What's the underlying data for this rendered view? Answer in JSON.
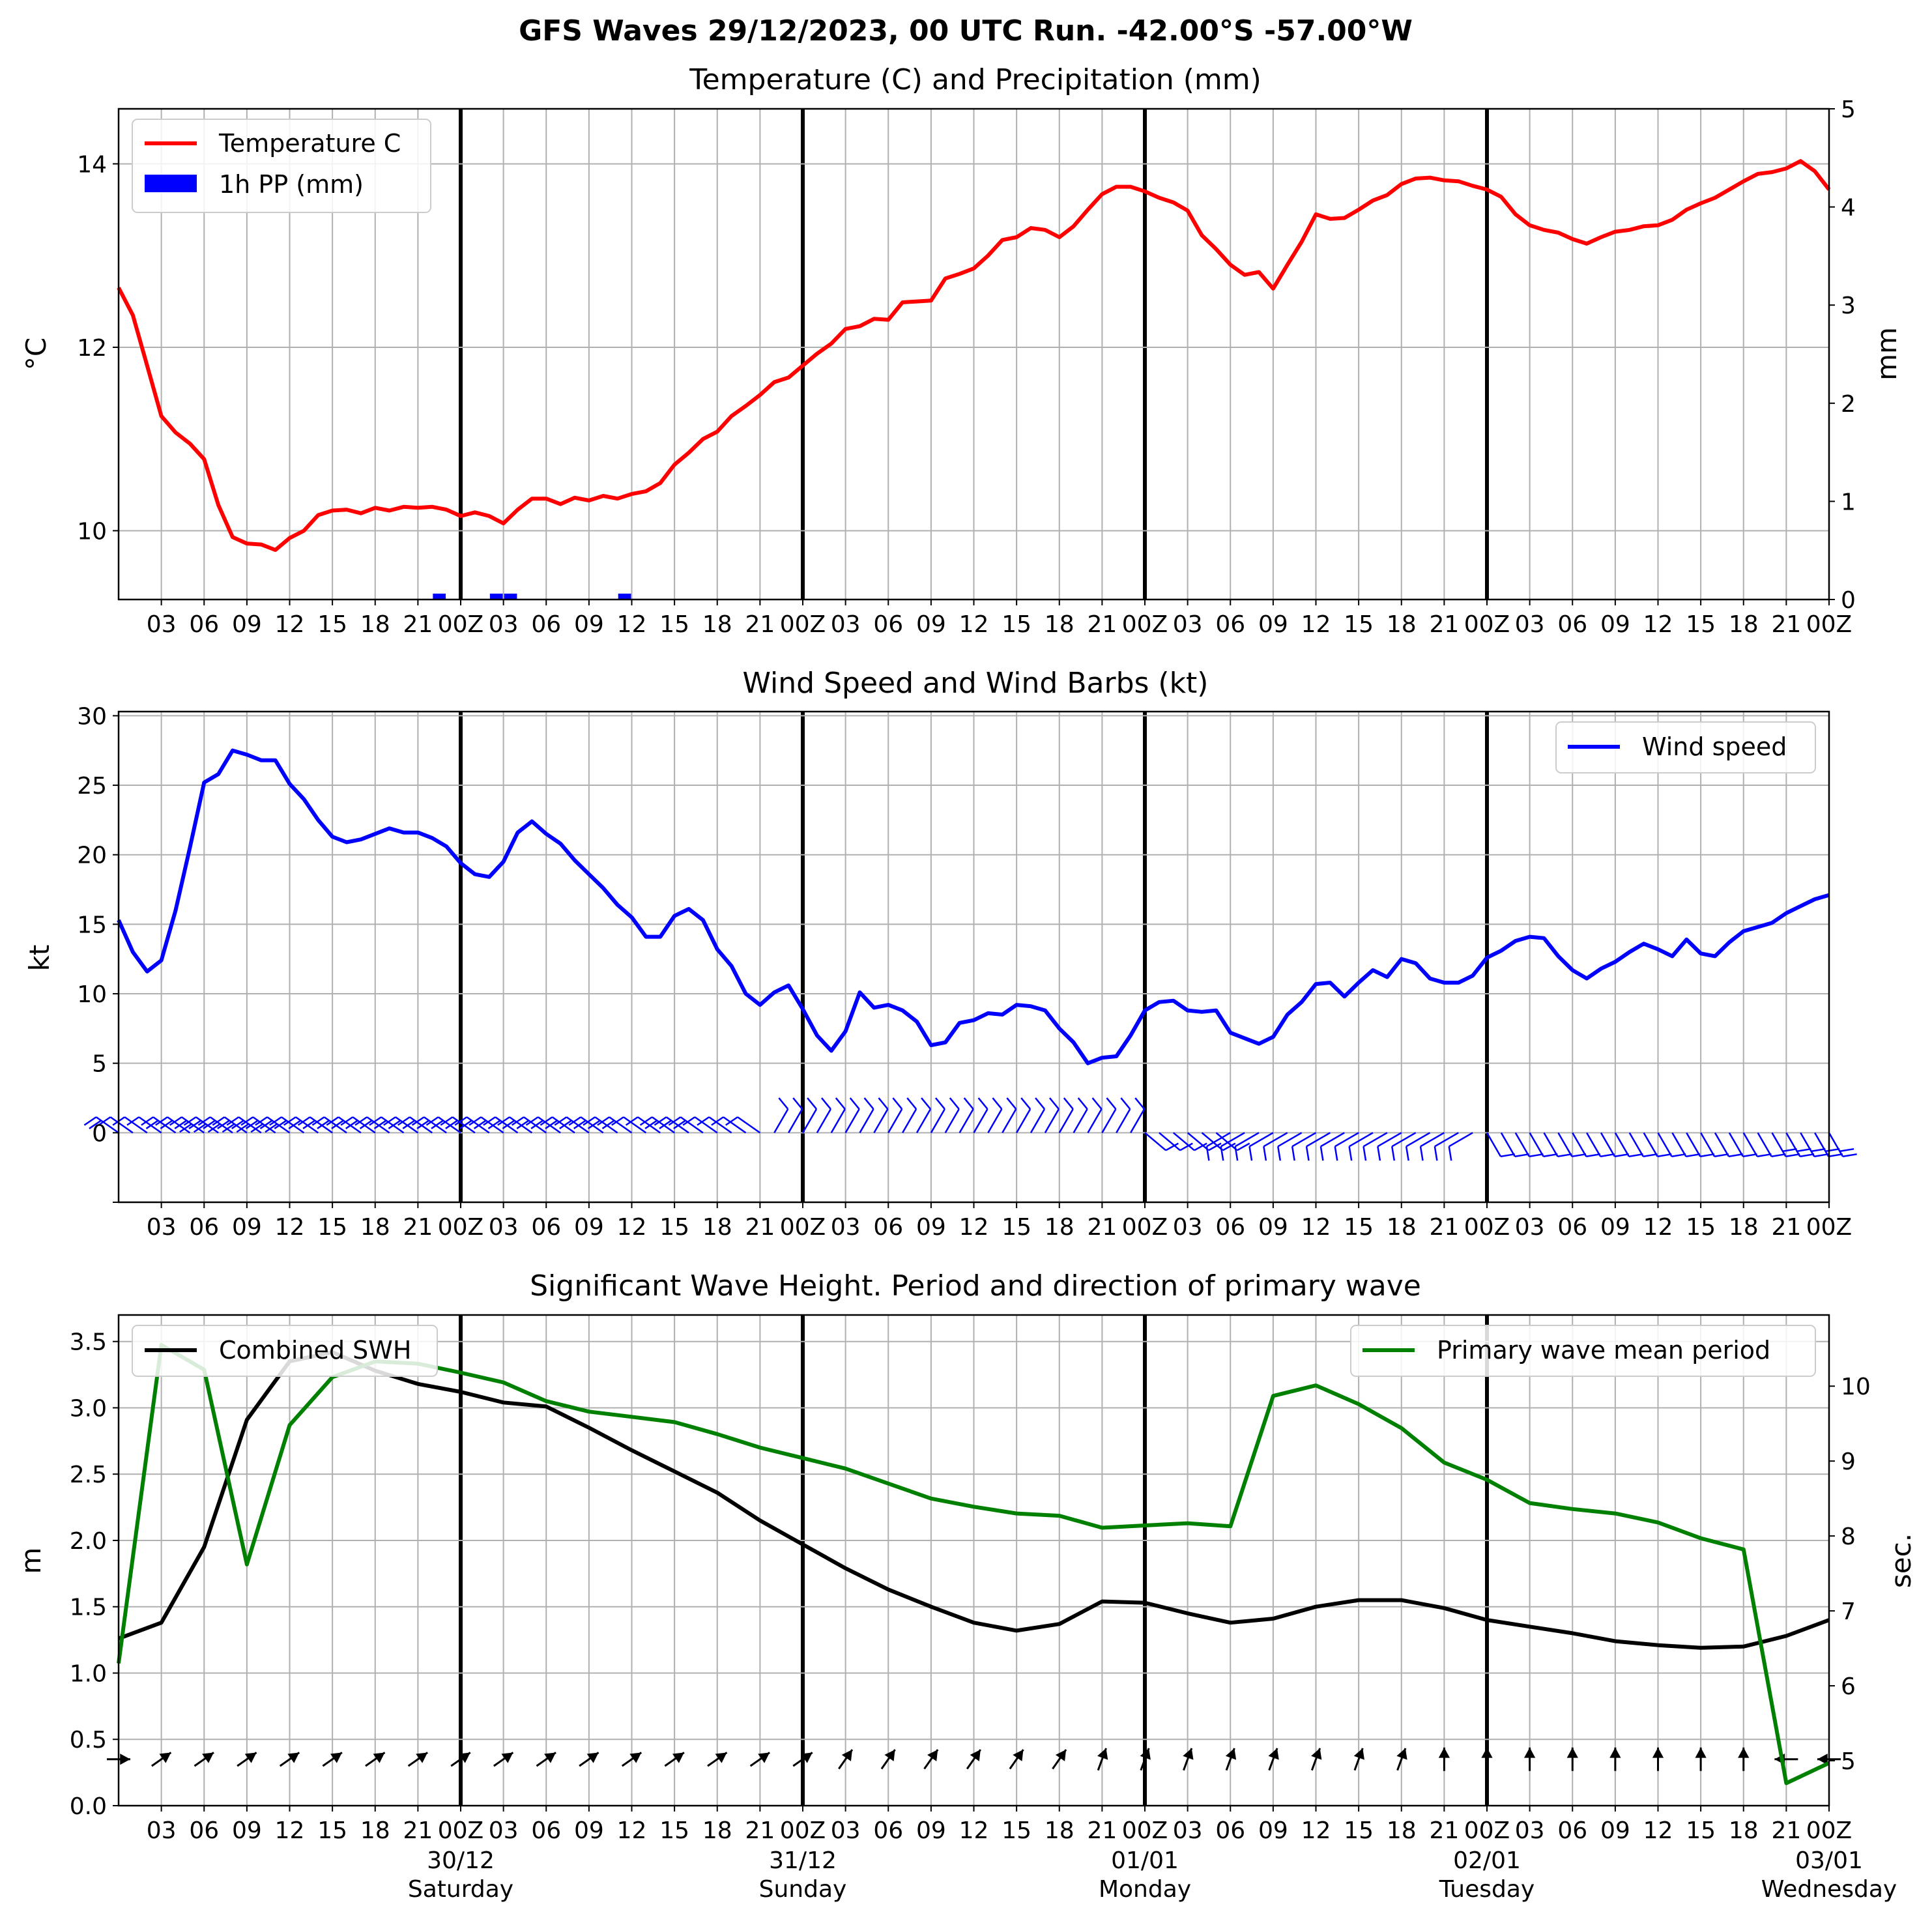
{
  "figure": {
    "suptitle": "GFS Waves 29/12/2023, 00 UTC Run. -42.00°S -57.00°W"
  },
  "time_axis": {
    "hour_labels": [
      "03",
      "06",
      "09",
      "12",
      "15",
      "18",
      "21",
      "00Z",
      "03",
      "06",
      "09",
      "12",
      "15",
      "18",
      "21",
      "00Z",
      "03",
      "06",
      "09",
      "12",
      "15",
      "18",
      "21",
      "00Z",
      "03",
      "06",
      "09",
      "12",
      "15",
      "18",
      "21",
      "00Z",
      "03",
      "06",
      "09",
      "12",
      "15",
      "18",
      "21",
      "00Z"
    ],
    "day_labels": [
      {
        "date": "30/12",
        "day": "Saturday",
        "hour": 24
      },
      {
        "date": "31/12",
        "day": "Sunday",
        "hour": 48
      },
      {
        "date": "01/01",
        "day": "Monday",
        "hour": 72
      },
      {
        "date": "02/01",
        "day": "Tuesday",
        "hour": 96
      },
      {
        "date": "03/01",
        "day": "Wednesday",
        "hour": 120
      }
    ]
  },
  "colors": {
    "temperature": "#ff0000",
    "precipitation": "#0000ff",
    "wind": "#0000ff",
    "swh": "#000000",
    "period": "#008000",
    "grid": "#b0b0b0"
  },
  "chart_data": [
    {
      "type": "line",
      "title": "Temperature (C) and Precipitation (mm)",
      "ylabel": "$^\\circ$C",
      "ylabel_right": "mm",
      "xlim": [
        0,
        120
      ],
      "ylim": [
        9.25,
        14.6
      ],
      "ylim_right": [
        0,
        5
      ],
      "yticks": [
        10,
        12,
        14
      ],
      "yticks_right": [
        0,
        1,
        2,
        3,
        4,
        5
      ],
      "legend_position": "upper left",
      "grid": true,
      "series": [
        {
          "name": "Temperature C",
          "x": [
            0,
            1,
            2,
            3,
            4,
            5,
            6,
            7,
            8,
            9,
            10,
            11,
            12,
            13,
            14,
            15,
            16,
            17,
            18,
            19,
            20,
            21,
            22,
            23,
            24,
            25,
            26,
            27,
            28,
            29,
            30,
            31,
            32,
            33,
            34,
            35,
            36,
            37,
            38,
            39,
            40,
            41,
            42,
            43,
            44,
            45,
            46,
            47,
            48,
            49,
            50,
            51,
            52,
            53,
            54,
            55,
            56,
            57,
            58,
            59,
            60,
            61,
            62,
            63,
            64,
            65,
            66,
            67,
            68,
            69,
            70,
            71,
            72,
            73,
            74,
            75,
            76,
            77,
            78,
            79,
            80,
            81,
            82,
            83,
            84,
            85,
            86,
            87,
            88,
            89,
            90,
            91,
            92,
            93,
            94,
            95,
            96,
            97,
            98,
            99,
            100,
            101,
            102,
            103,
            104,
            105,
            106,
            107,
            108,
            109,
            110,
            111,
            112,
            113,
            114,
            115,
            116,
            117,
            118,
            119,
            120
          ],
          "y": [
            12.65,
            12.35,
            11.8,
            11.25,
            11.07,
            10.95,
            10.78,
            10.28,
            9.93,
            9.86,
            9.85,
            9.79,
            9.92,
            10.0,
            10.17,
            10.22,
            10.23,
            10.19,
            10.25,
            10.22,
            10.26,
            10.25,
            10.26,
            10.23,
            10.16,
            10.2,
            10.16,
            10.08,
            10.23,
            10.35,
            10.35,
            10.29,
            10.36,
            10.33,
            10.38,
            10.35,
            10.4,
            10.43,
            10.52,
            10.72,
            10.85,
            11.0,
            11.08,
            11.25,
            11.36,
            11.48,
            11.62,
            11.67,
            11.8,
            11.93,
            12.04,
            12.2,
            12.23,
            12.31,
            12.3,
            12.49,
            12.5,
            12.51,
            12.75,
            12.8,
            12.86,
            13.0,
            13.17,
            13.2,
            13.3,
            13.28,
            13.2,
            13.32,
            13.5,
            13.67,
            13.75,
            13.75,
            13.7,
            13.63,
            13.58,
            13.49,
            13.22,
            13.07,
            12.9,
            12.79,
            12.82,
            12.64,
            12.9,
            13.15,
            13.45,
            13.4,
            13.41,
            13.5,
            13.6,
            13.66,
            13.78,
            13.84,
            13.85,
            13.82,
            13.81,
            13.76,
            13.72,
            13.64,
            13.45,
            13.33,
            13.28,
            13.25,
            13.18,
            13.13,
            13.2,
            13.26,
            13.28,
            13.32,
            13.33,
            13.39,
            13.5,
            13.57,
            13.63,
            13.72,
            13.81,
            13.89,
            13.91,
            13.95,
            14.03,
            13.92,
            13.72
          ]
        },
        {
          "name": "1h PP (mm)",
          "type": "bar",
          "x": [
            22.5,
            26.5,
            27.5,
            35.5
          ],
          "y": [
            0.06,
            0.06,
            0.06,
            0.06
          ]
        }
      ]
    },
    {
      "type": "line",
      "title": "Wind Speed and Wind Barbs (kt)",
      "ylabel": "kt",
      "xlim": [
        0,
        120
      ],
      "ylim": [
        -5,
        30.3
      ],
      "yticks": [
        0,
        5,
        10,
        15,
        20,
        25,
        30
      ],
      "legend_position": "upper right",
      "grid": true,
      "barbs": "wind barbs drawn along y=0 at every hour",
      "series": [
        {
          "name": "Wind speed",
          "x": [
            0,
            1,
            2,
            3,
            4,
            5,
            6,
            7,
            8,
            9,
            10,
            11,
            12,
            13,
            14,
            15,
            16,
            17,
            18,
            19,
            20,
            21,
            22,
            23,
            24,
            25,
            26,
            27,
            28,
            29,
            30,
            31,
            32,
            33,
            34,
            35,
            36,
            37,
            38,
            39,
            40,
            41,
            42,
            43,
            44,
            45,
            46,
            47,
            48,
            49,
            50,
            51,
            52,
            53,
            54,
            55,
            56,
            57,
            58,
            59,
            60,
            61,
            62,
            63,
            64,
            65,
            66,
            67,
            68,
            69,
            70,
            71,
            72,
            73,
            74,
            75,
            76,
            77,
            78,
            79,
            80,
            81,
            82,
            83,
            84,
            85,
            86,
            87,
            88,
            89,
            90,
            91,
            92,
            93,
            94,
            95,
            96,
            97,
            98,
            99,
            100,
            101,
            102,
            103,
            104,
            105,
            106,
            107,
            108,
            109,
            110,
            111,
            112,
            113,
            114,
            115,
            116,
            117,
            118,
            119,
            120
          ],
          "y": [
            15.3,
            13.0,
            11.6,
            12.4,
            16.0,
            20.5,
            25.2,
            25.8,
            27.5,
            27.2,
            26.8,
            26.8,
            25.1,
            24.0,
            22.5,
            21.3,
            20.9,
            21.1,
            21.5,
            21.9,
            21.6,
            21.6,
            21.2,
            20.6,
            19.4,
            18.6,
            18.4,
            19.5,
            21.6,
            22.4,
            21.5,
            20.8,
            19.6,
            18.6,
            17.6,
            16.4,
            15.5,
            14.1,
            14.1,
            15.6,
            16.1,
            15.3,
            13.2,
            12.0,
            10.0,
            9.2,
            10.1,
            10.6,
            8.9,
            7.0,
            5.9,
            7.3,
            10.1,
            9.0,
            9.2,
            8.8,
            8.0,
            6.3,
            6.5,
            7.9,
            8.1,
            8.6,
            8.5,
            9.2,
            9.1,
            8.8,
            7.5,
            6.5,
            5.0,
            5.4,
            5.5,
            7.0,
            8.8,
            9.4,
            9.5,
            8.8,
            8.7,
            8.8,
            7.2,
            6.8,
            6.4,
            6.9,
            8.5,
            9.4,
            10.7,
            10.8,
            9.8,
            10.8,
            11.7,
            11.2,
            12.5,
            12.2,
            11.1,
            10.8,
            10.8,
            11.3,
            12.6,
            13.1,
            13.8,
            14.1,
            14.0,
            12.7,
            11.7,
            11.1,
            11.8,
            12.3,
            13.0,
            13.6,
            13.2,
            12.7,
            13.9,
            12.9,
            12.7,
            13.7,
            14.5,
            14.8,
            15.1,
            15.8,
            16.3,
            16.8,
            17.1
          ]
        }
      ]
    },
    {
      "type": "line",
      "title": "Significant Wave Height. Period and direction of primary wave",
      "ylabel": "m",
      "ylabel_right": "sec.",
      "xlim": [
        0,
        120
      ],
      "ylim": [
        0,
        3.7
      ],
      "ylim_right": [
        4.4,
        10.95
      ],
      "yticks": [
        0.0,
        0.5,
        1.0,
        1.5,
        2.0,
        2.5,
        3.0,
        3.5
      ],
      "yticks_right": [
        5,
        6,
        7,
        8,
        9,
        10
      ],
      "grid": true,
      "series": [
        {
          "name": "Combined SWH",
          "legend_position": "upper left",
          "x": [
            0,
            3,
            6,
            9,
            12,
            15,
            18,
            21,
            24,
            27,
            30,
            33,
            36,
            39,
            42,
            45,
            48,
            51,
            54,
            57,
            60,
            63,
            66,
            69,
            72,
            75,
            78,
            81,
            84,
            87,
            90,
            93,
            96,
            99,
            102,
            105,
            108,
            111,
            114,
            117,
            120
          ],
          "y": [
            1.26,
            1.38,
            1.95,
            2.91,
            3.35,
            3.42,
            3.28,
            3.18,
            3.12,
            3.04,
            3.01,
            2.85,
            2.68,
            2.52,
            2.36,
            2.15,
            1.97,
            1.79,
            1.63,
            1.5,
            1.38,
            1.32,
            1.37,
            1.54,
            1.53,
            1.45,
            1.38,
            1.41,
            1.5,
            1.55,
            1.55,
            1.49,
            1.4,
            1.35,
            1.3,
            1.24,
            1.21,
            1.19,
            1.2,
            1.28,
            1.4
          ]
        },
        {
          "name": "Primary wave mean period",
          "legend_position": "upper right",
          "x": [
            0,
            3,
            6,
            9,
            12,
            15,
            18,
            21,
            24,
            27,
            30,
            33,
            36,
            39,
            42,
            45,
            48,
            51,
            54,
            57,
            60,
            63,
            66,
            69,
            72,
            75,
            78,
            81,
            84,
            87,
            90,
            93,
            96,
            99,
            102,
            105,
            108,
            111,
            114,
            117,
            120
          ],
          "y": [
            6.3,
            10.55,
            10.22,
            7.62,
            9.48,
            10.12,
            10.33,
            10.3,
            10.18,
            10.05,
            9.8,
            9.66,
            9.59,
            9.52,
            9.36,
            9.18,
            9.04,
            8.9,
            8.7,
            8.5,
            8.39,
            8.3,
            8.27,
            8.11,
            8.14,
            8.17,
            8.13,
            9.87,
            10.01,
            9.76,
            9.44,
            8.98,
            8.75,
            8.44,
            8.36,
            8.3,
            8.18,
            7.97,
            7.82,
            4.7,
            4.97
          ]
        }
      ],
      "direction_arrows": "primary wave direction arrows drawn near y=0.35 every 3 hours"
    }
  ]
}
